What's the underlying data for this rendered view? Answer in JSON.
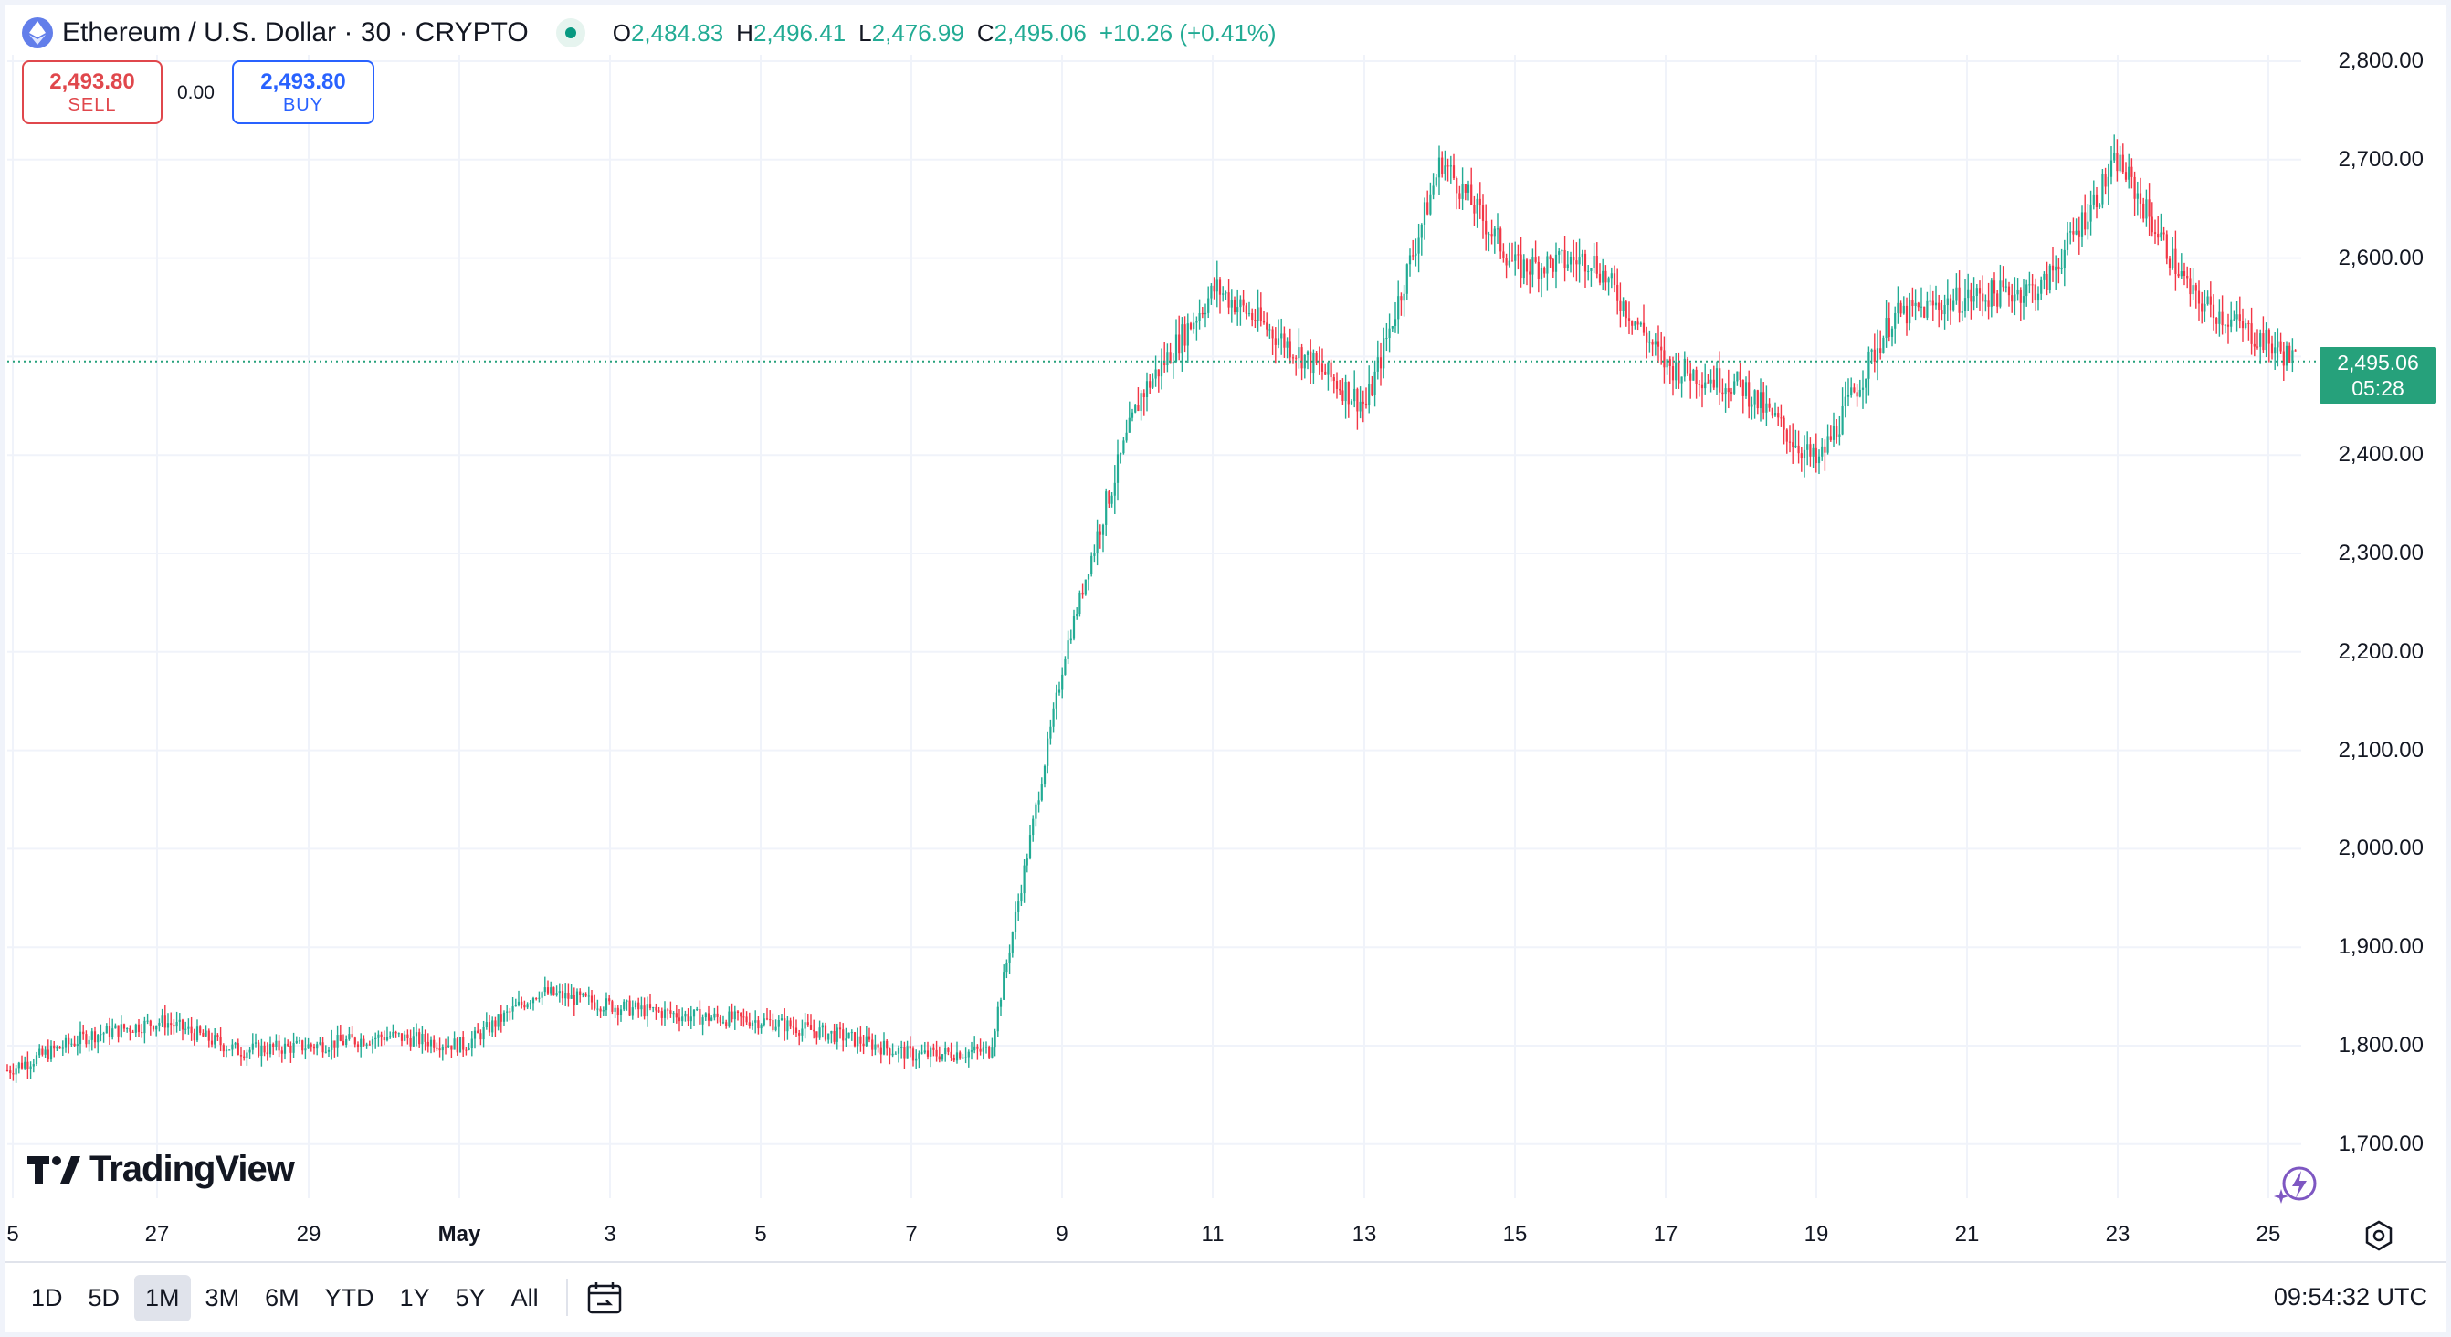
{
  "header": {
    "title": "Ethereum / U.S. Dollar · 30 · CRYPTO",
    "ohlc": {
      "o_key": "O",
      "o": "2,484.83",
      "h_key": "H",
      "h": "2,496.41",
      "l_key": "L",
      "l": "2,476.99",
      "c_key": "C",
      "c": "2,495.06",
      "change": "+10.26 (+0.41%)"
    }
  },
  "trade": {
    "sell_price": "2,493.80",
    "sell_label": "SELL",
    "spread": "0.00",
    "buy_price": "2,493.80",
    "buy_label": "BUY"
  },
  "price_scale": {
    "last_price": "2,495.06",
    "countdown": "05:28"
  },
  "toolbar": {
    "timeframes": [
      "1D",
      "5D",
      "1M",
      "3M",
      "6M",
      "YTD",
      "1Y",
      "5Y",
      "All"
    ],
    "active": "1M",
    "clock": "09:54:32 UTC"
  },
  "logo": {
    "text": "TradingView"
  },
  "colors": {
    "up": "#22ab94",
    "down": "#f23645",
    "last_price_bg": "#26a17b",
    "grid": "#f0f3fa"
  },
  "chart_data": {
    "type": "line",
    "series": [
      {
        "name": "",
        "x": [
          "Apr 25",
          "Apr 26",
          "Apr 27",
          "Apr 28",
          "Apr 29",
          "Apr 30",
          "May 1",
          "May 2",
          "May 3",
          "May 4",
          "May 5",
          "May 6",
          "May 7",
          "May 8",
          "May 9",
          "May 9.5",
          "May 10",
          "May 11",
          "May 12",
          "May 13",
          "May 14",
          "May 15",
          "May 16",
          "May 17",
          "May 18",
          "May 19",
          "May 20",
          "May 21",
          "May 22",
          "May 23",
          "May 24",
          "May 25"
        ],
        "values": [
          1775,
          1810,
          1825,
          1795,
          1800,
          1810,
          1800,
          1855,
          1840,
          1830,
          1825,
          1810,
          1790,
          1795,
          2200,
          2340,
          2460,
          2570,
          2510,
          2450,
          2700,
          2590,
          2600,
          2490,
          2470,
          2390,
          2540,
          2560,
          2570,
          2700,
          2560,
          2495
        ]
      }
    ],
    "y_ticks": [
      "2,800.00",
      "2,700.00",
      "2,600.00",
      "2,400.00",
      "2,300.00",
      "2,200.00",
      "2,100.00",
      "2,000.00",
      "1,900.00",
      "1,800.00",
      "1,700.00"
    ],
    "x_ticks": [
      "5",
      "27",
      "29",
      "May",
      "3",
      "5",
      "7",
      "9",
      "11",
      "13",
      "15",
      "17",
      "19",
      "21",
      "23",
      "25"
    ],
    "ylim": [
      1700,
      2800
    ],
    "last_price_value": 2495.06,
    "grid": true
  }
}
